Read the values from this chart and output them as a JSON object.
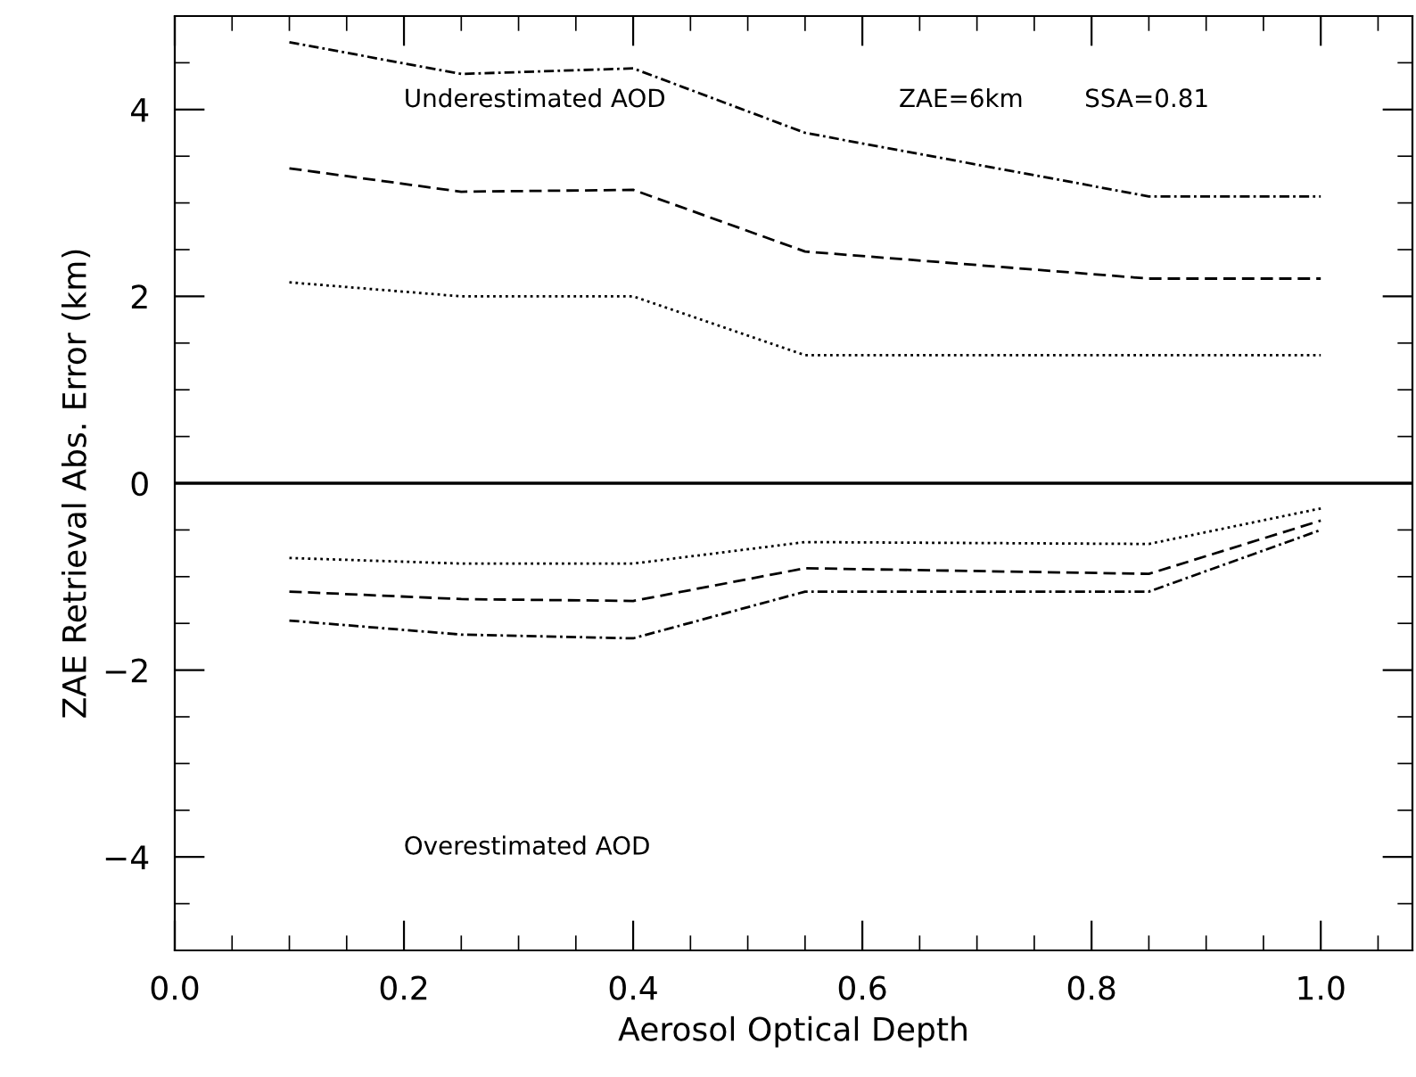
{
  "chart_data": {
    "type": "line",
    "xlabel": "Aerosol Optical Depth",
    "ylabel": "ZAE Retrieval Abs. Error (km)",
    "x": [
      0.1,
      0.25,
      0.4,
      0.55,
      0.85,
      1.0
    ],
    "series": [
      {
        "color": "#000000",
        "line_style": "dashdot",
        "values": [
          4.72,
          4.38,
          4.44,
          3.75,
          3.07,
          3.07
        ]
      },
      {
        "color": "#000000",
        "line_style": "dashed",
        "values": [
          3.37,
          3.12,
          3.14,
          2.48,
          2.19,
          2.19
        ]
      },
      {
        "color": "#000000",
        "line_style": "dotted",
        "values": [
          2.15,
          2.0,
          2.0,
          1.37,
          1.37,
          1.37
        ]
      },
      {
        "color": "#000000",
        "line_style": "dotted",
        "values": [
          -0.8,
          -0.86,
          -0.86,
          -0.63,
          -0.65,
          -0.27
        ]
      },
      {
        "color": "#000000",
        "line_style": "dashed",
        "values": [
          -1.16,
          -1.24,
          -1.26,
          -0.91,
          -0.97,
          -0.4
        ]
      },
      {
        "color": "#000000",
        "line_style": "dashdot",
        "values": [
          -1.47,
          -1.62,
          -1.66,
          -1.16,
          -1.16,
          -0.5
        ]
      }
    ],
    "xlim": [
      0,
      1.08
    ],
    "xticks": [
      {
        "value": 0,
        "label": "0.0"
      },
      0.2,
      0.4,
      0.6,
      0.8,
      {
        "value": 1,
        "label": "1.0"
      }
    ],
    "ylim": [
      -5,
      5
    ],
    "yticks": [
      {
        "value": -4,
        "label": "−4"
      },
      {
        "value": -2,
        "label": "−2"
      },
      0,
      2,
      4
    ],
    "ref_lines": [
      {
        "axis": "y",
        "value": 0,
        "color": "#000000",
        "line_style": "solid"
      }
    ],
    "annotations": [
      "Underestimated AOD",
      "ZAE=6km",
      "SSA=0.81",
      "Overestimated AOD"
    ],
    "grid": false,
    "legend": false,
    "marker": "none"
  }
}
